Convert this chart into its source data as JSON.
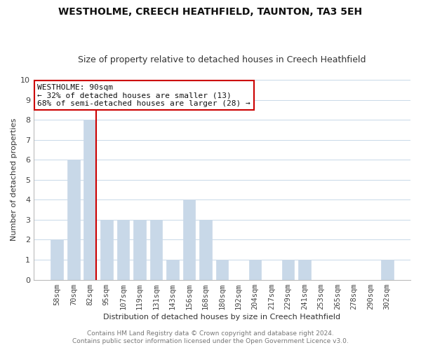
{
  "title": "WESTHOLME, CREECH HEATHFIELD, TAUNTON, TA3 5EH",
  "subtitle": "Size of property relative to detached houses in Creech Heathfield",
  "xlabel": "Distribution of detached houses by size in Creech Heathfield",
  "ylabel": "Number of detached properties",
  "categories": [
    "58sqm",
    "70sqm",
    "82sqm",
    "95sqm",
    "107sqm",
    "119sqm",
    "131sqm",
    "143sqm",
    "156sqm",
    "168sqm",
    "180sqm",
    "192sqm",
    "204sqm",
    "217sqm",
    "229sqm",
    "241sqm",
    "253sqm",
    "265sqm",
    "278sqm",
    "290sqm",
    "302sqm"
  ],
  "values": [
    2,
    6,
    8,
    3,
    3,
    3,
    3,
    1,
    4,
    3,
    1,
    0,
    1,
    0,
    1,
    1,
    0,
    0,
    0,
    0,
    1
  ],
  "bar_color": "#c8d8e8",
  "bar_edgecolor": "#c8d8e8",
  "highlight_line_color": "#cc0000",
  "highlight_bar_index": 2,
  "annotation_line1": "WESTHOLME: 90sqm",
  "annotation_line2": "← 32% of detached houses are smaller (13)",
  "annotation_line3": "68% of semi-detached houses are larger (28) →",
  "annotation_box_facecolor": "#ffffff",
  "annotation_box_edgecolor": "#cc0000",
  "ylim": [
    0,
    10
  ],
  "yticks": [
    0,
    1,
    2,
    3,
    4,
    5,
    6,
    7,
    8,
    9,
    10
  ],
  "footer1": "Contains HM Land Registry data © Crown copyright and database right 2024.",
  "footer2": "Contains public sector information licensed under the Open Government Licence v3.0.",
  "background_color": "#ffffff",
  "grid_color": "#c8d8e8",
  "title_fontsize": 10,
  "subtitle_fontsize": 9,
  "axis_label_fontsize": 8,
  "tick_fontsize": 7.5,
  "footer_fontsize": 6.5
}
